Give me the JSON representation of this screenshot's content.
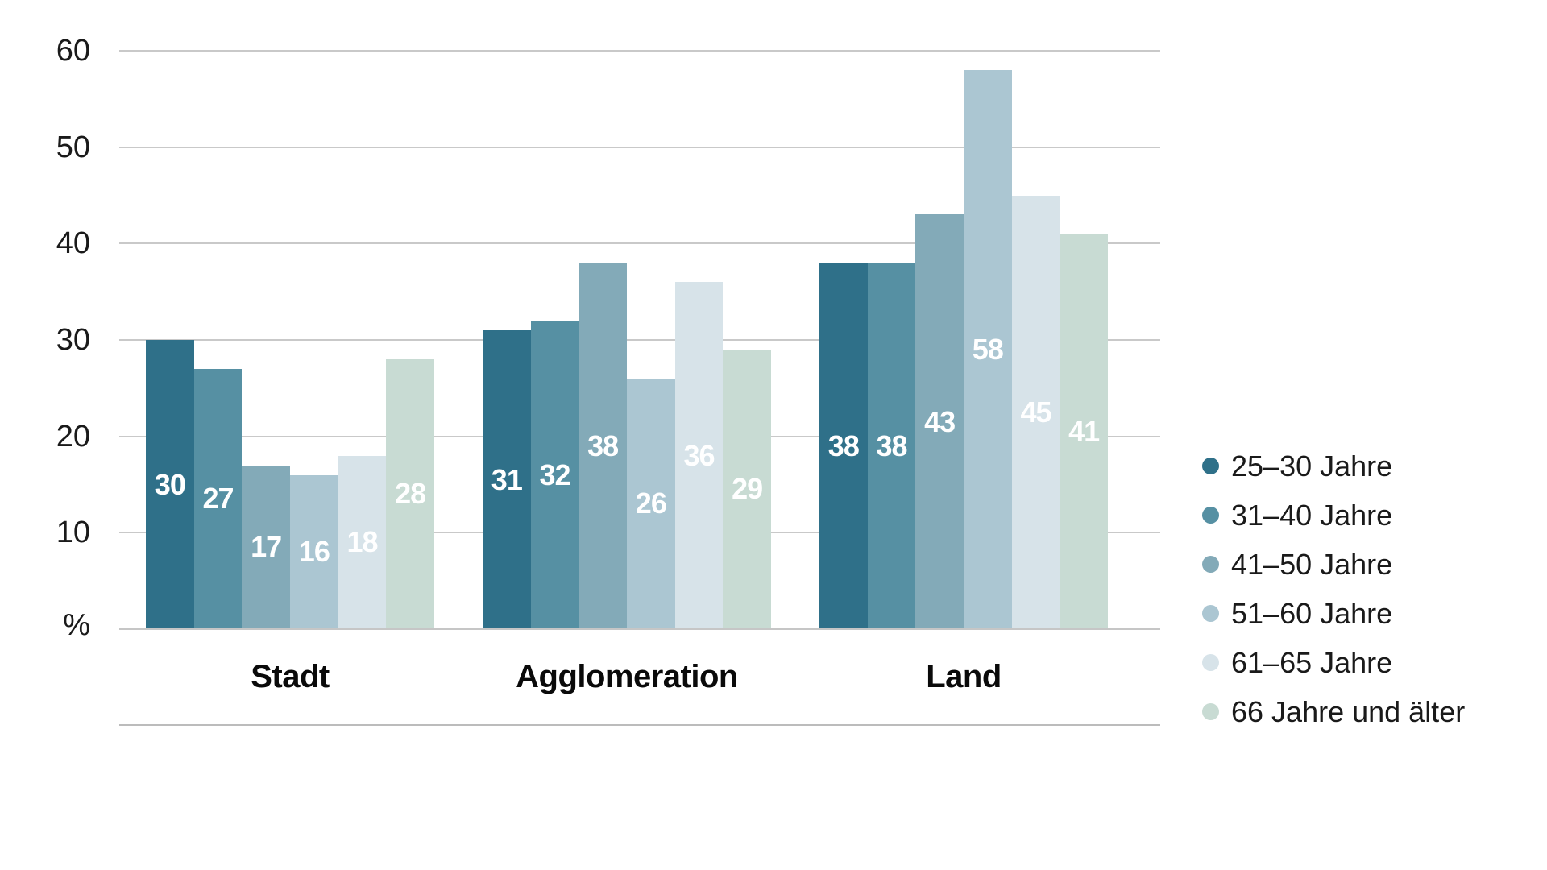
{
  "chart_data": {
    "type": "bar",
    "title": "",
    "categories": [
      "Stadt",
      "Agglomeration",
      "Land"
    ],
    "series": [
      {
        "name": "25–30 Jahre",
        "color": "#2F7089",
        "values": [
          30,
          31,
          38
        ]
      },
      {
        "name": "31–40 Jahre",
        "color": "#5690A3",
        "values": [
          27,
          32,
          38
        ]
      },
      {
        "name": "41–50 Jahre",
        "color": "#83AAB8",
        "values": [
          17,
          38,
          43
        ]
      },
      {
        "name": "51–60 Jahre",
        "color": "#ABC6D2",
        "values": [
          16,
          26,
          58
        ]
      },
      {
        "name": "61–65 Jahre",
        "color": "#D7E3E9",
        "values": [
          18,
          36,
          45
        ]
      },
      {
        "name": "66 Jahre und älter",
        "color": "#C8DBD3",
        "values": [
          28,
          29,
          41
        ]
      }
    ],
    "xlabel": "",
    "ylabel": "%",
    "ylim": [
      0,
      60
    ],
    "ytick_step": 10,
    "ytick_labels": [
      "10",
      "20",
      "30",
      "40",
      "50",
      "60"
    ],
    "unit_label": "%",
    "grid": true,
    "legend_position": "right",
    "bar_value_labels_shown": true,
    "colors": {
      "gridline": "#C9C9C9",
      "baseline": "#C6C6C6",
      "separator": "#BCBCBC",
      "axis_text": "#1A1A1A",
      "bar_value_text": "#FFFFFF",
      "category_text": "#0A0A0A",
      "background": "#FFFFFF"
    }
  }
}
